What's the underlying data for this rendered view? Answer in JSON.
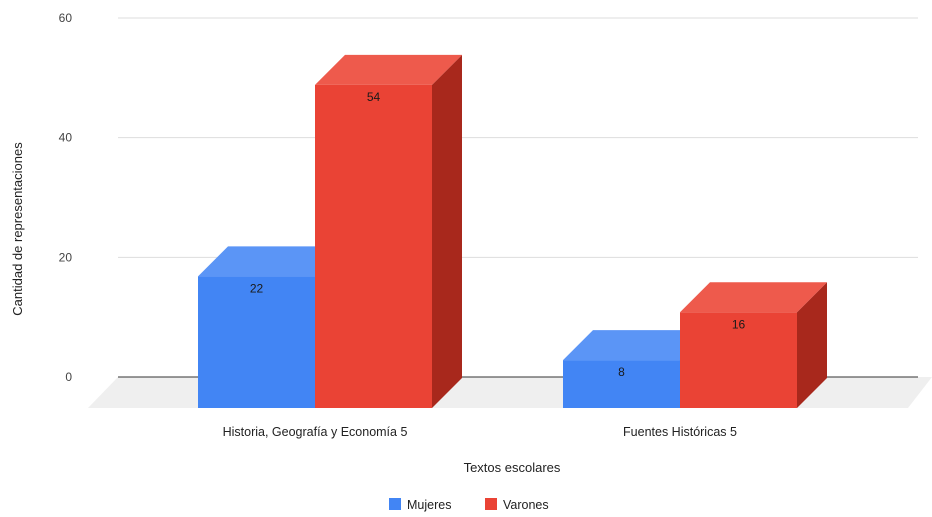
{
  "chart_data": {
    "type": "bar",
    "title": "",
    "xlabel": "Textos escolares",
    "ylabel": "Cantidad de representaciones",
    "categories": [
      "Historia, Geografía y Economía 5",
      "Fuentes Históricas 5"
    ],
    "series": [
      {
        "name": "Mujeres",
        "values": [
          22,
          8
        ],
        "color": "#4285f4",
        "side_color": "#2a66c9",
        "top_color": "#5b95f6"
      },
      {
        "name": "Varones",
        "values": [
          54,
          16
        ],
        "color": "#ea4335",
        "side_color": "#a8281c",
        "top_color": "#ee5a4c"
      }
    ],
    "ylim": [
      0,
      60
    ],
    "yticks": [
      0,
      20,
      40,
      60
    ],
    "grid": true,
    "legend_position": "bottom",
    "style": "3d-bar"
  }
}
